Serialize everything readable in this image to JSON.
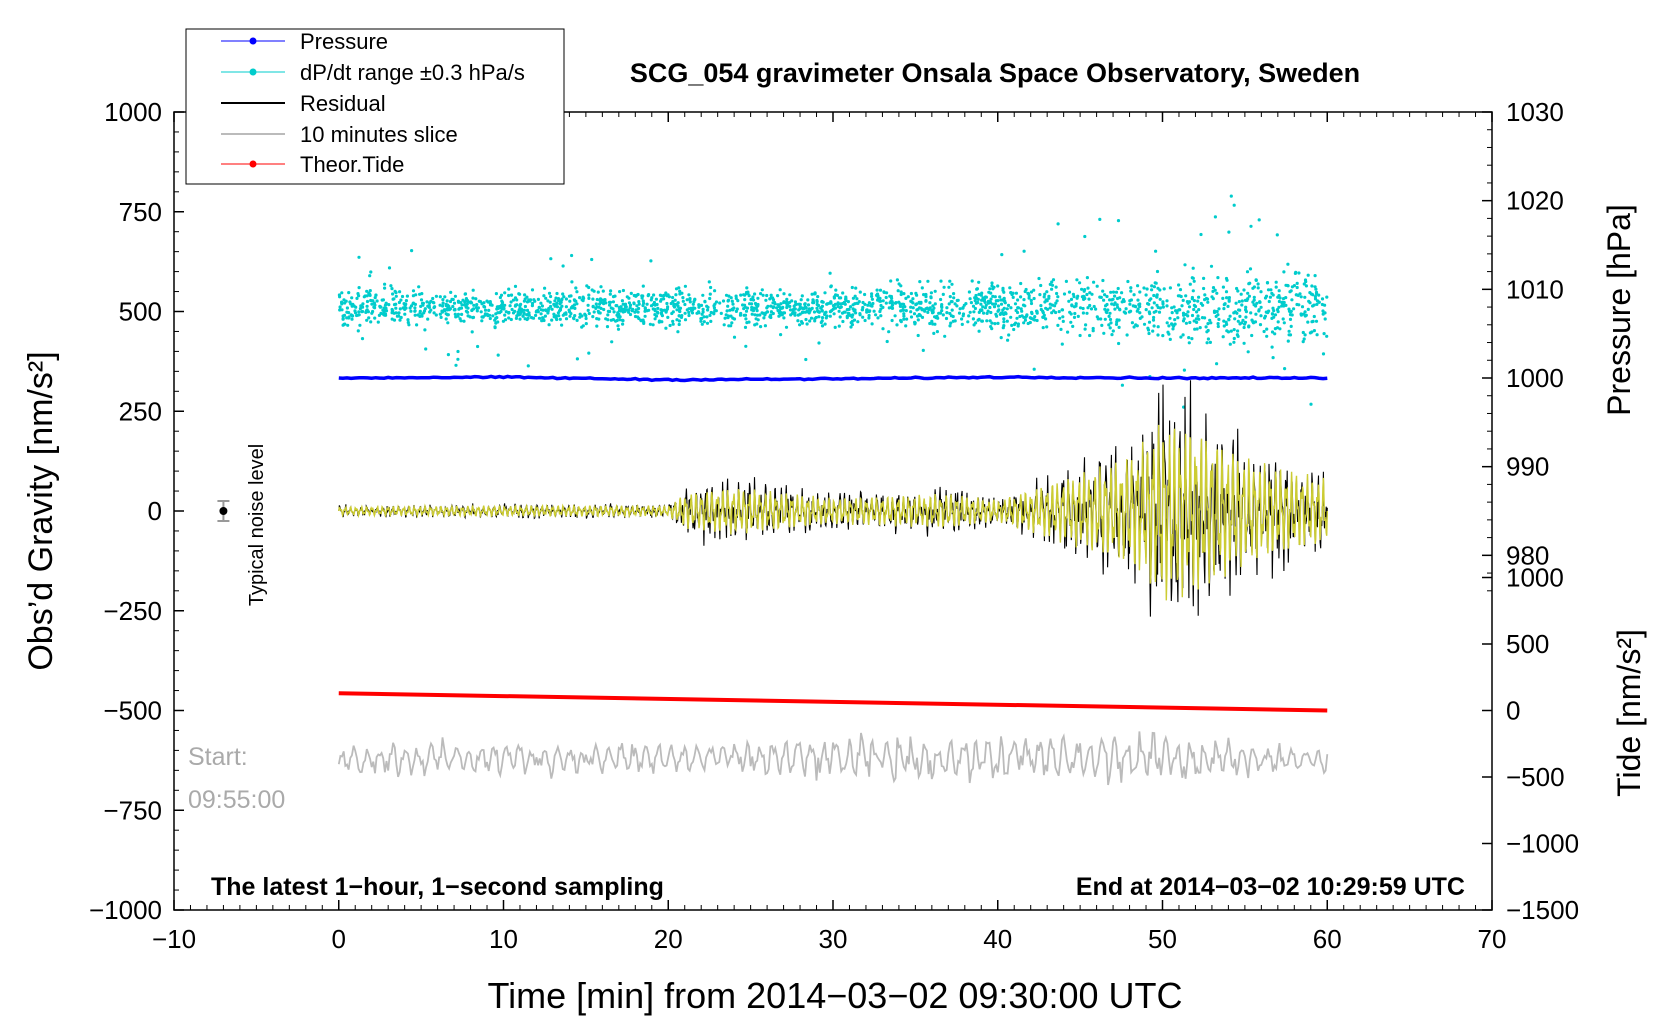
{
  "chart_data": {
    "type": "line",
    "title": "SCG_054 gravimeter Onsala Space Observatory, Sweden",
    "xlabel": "Time [min] from 2014−03−02 09:30:00 UTC",
    "ylabel_left": "Obs’d Gravity [nm/s²]",
    "ylabel_right_top": "Pressure [hPa]",
    "ylabel_right_bottom": "Tide [nm/s²]",
    "xlim": [
      -10,
      70
    ],
    "ylim": [
      -1000,
      1000
    ],
    "x_ticks": [
      -10,
      0,
      10,
      20,
      30,
      40,
      50,
      60,
      70
    ],
    "x_tick_labels": [
      "−10",
      "0",
      "10",
      "20",
      "30",
      "40",
      "50",
      "60",
      "70"
    ],
    "y_ticks": [
      -1000,
      -750,
      -500,
      -250,
      0,
      250,
      500,
      750,
      1000
    ],
    "y_tick_labels": [
      "−1000",
      "−750",
      "−500",
      "−250",
      "0",
      "250",
      "500",
      "750",
      "1000"
    ],
    "pressure_axis": {
      "range": [
        940,
        1030
      ],
      "ticks": [
        980,
        990,
        1000,
        1010,
        1020,
        1030
      ],
      "tick_labels": [
        "980",
        "990",
        "1000",
        "1010",
        "1020",
        "1030"
      ]
    },
    "tide_axis": {
      "range": [
        -1500,
        4500
      ],
      "ticks": [
        -1500,
        -1000,
        -500,
        0,
        500,
        1000
      ],
      "tick_labels": [
        "−1500",
        "−1000",
        "−500",
        "0",
        "500",
        "1000"
      ]
    },
    "series": [
      {
        "name": "Pressure",
        "color": "#0000ff",
        "axis": "pressure",
        "x": [
          0,
          10,
          20,
          30,
          40,
          50,
          60
        ],
        "values": [
          1000.0,
          1000.1,
          999.8,
          999.9,
          1000.1,
          1000.0,
          1000.0
        ]
      },
      {
        "name": "dP/dt range ±0.3 hPa/s",
        "color": "#00cccc",
        "axis": "gravity",
        "center": 510,
        "spread_early": 50,
        "spread_late": 110
      },
      {
        "name": "Residual",
        "color": "#000000",
        "axis": "gravity",
        "x": [
          0,
          10,
          20,
          21,
          24,
          30,
          37,
          40,
          48,
          50,
          52,
          55,
          57,
          60
        ],
        "envelope": [
          20,
          25,
          25,
          80,
          110,
          60,
          80,
          50,
          250,
          420,
          380,
          250,
          200,
          150
        ]
      },
      {
        "name": "10 minutes slice",
        "color": "#bbbbbb",
        "axis": "gravity",
        "x": [
          0,
          20,
          40,
          43,
          60
        ],
        "values": [
          -620,
          -620,
          -620,
          -620,
          -620
        ],
        "envelope": [
          50,
          50,
          80,
          90,
          40
        ]
      },
      {
        "name": "Theor.Tide",
        "color": "#ff0000",
        "axis": "tide",
        "x": [
          0,
          60
        ],
        "values": [
          130,
          0
        ]
      }
    ],
    "filtered_series_color": "#cccc33",
    "legend": {
      "position": "top-left",
      "items": [
        "Pressure",
        "dP/dt range ±0.3 hPa/s",
        "Residual",
        "10 minutes slice",
        "Theor.Tide"
      ]
    },
    "annotations": {
      "noise": "Typical noise level",
      "noise_x": -7,
      "noise_y": 0,
      "start_label": "Start:",
      "start_time": "09:55:00",
      "bottom_left": "The latest 1−hour, 1−second sampling",
      "bottom_right": "End at 2014−03−02 10:29:59 UTC"
    }
  }
}
